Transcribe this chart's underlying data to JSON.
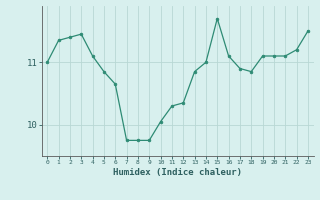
{
  "xlabel": "Humidex (Indice chaleur)",
  "ylabel": "",
  "x": [
    0,
    1,
    2,
    3,
    4,
    5,
    6,
    7,
    8,
    9,
    10,
    11,
    12,
    13,
    14,
    15,
    16,
    17,
    18,
    19,
    20,
    21,
    22,
    23
  ],
  "y": [
    11.0,
    11.35,
    11.4,
    11.45,
    11.1,
    10.85,
    10.65,
    9.75,
    9.75,
    9.75,
    10.05,
    10.3,
    10.35,
    10.85,
    11.0,
    11.7,
    11.1,
    10.9,
    10.85,
    11.1,
    11.1,
    11.1,
    11.2,
    11.5
  ],
  "line_color": "#2e8b74",
  "marker_color": "#2e8b74",
  "bg_color": "#d8f0ee",
  "grid_color": "#b8d8d4",
  "tick_label_color": "#2e6060",
  "yticks": [
    10,
    11
  ],
  "xlim": [
    -0.5,
    23.5
  ],
  "ylim": [
    9.5,
    11.9
  ]
}
